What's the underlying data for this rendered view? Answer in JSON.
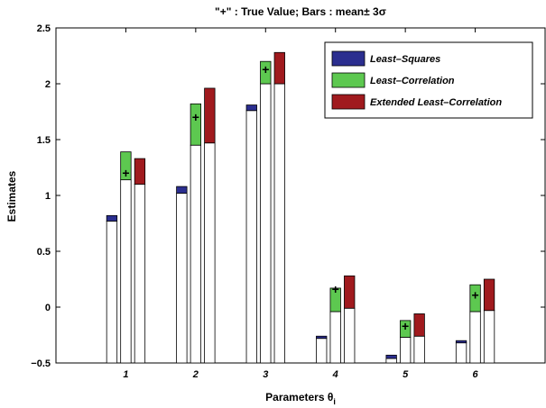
{
  "chart_data": {
    "type": "bar",
    "title": "\"+\" : True Value; Bars : mean± 3σ",
    "xlabel": "Parameters θ",
    "xlabel_sub": "i",
    "ylabel": "Estimates",
    "ylim": [
      -0.5,
      2.5
    ],
    "yticks": [
      -0.5,
      0,
      0.5,
      1,
      1.5,
      2,
      2.5
    ],
    "ytick_labels": [
      "−0.5",
      "0",
      "0.5",
      "1",
      "1.5",
      "2",
      "2.5"
    ],
    "categories": [
      "1",
      "2",
      "3",
      "4",
      "5",
      "6"
    ],
    "grid": false,
    "legend_position": "top-right",
    "true_marker": "+",
    "true_values": [
      1.2,
      1.7,
      2.13,
      0.16,
      -0.17,
      0.11
    ],
    "series": [
      {
        "name": "Least–Squares",
        "color": "#2b2e8f",
        "lower": [
          0.77,
          1.02,
          1.76,
          -0.28,
          -0.46,
          -0.32
        ],
        "upper": [
          0.82,
          1.08,
          1.81,
          -0.26,
          -0.43,
          -0.3
        ]
      },
      {
        "name": "Least–Correlation",
        "color": "#5dc850",
        "lower": [
          1.14,
          1.45,
          2.0,
          -0.04,
          -0.27,
          -0.04
        ],
        "upper": [
          1.39,
          1.82,
          2.2,
          0.17,
          -0.12,
          0.2
        ]
      },
      {
        "name": "Extended Least–Correlation",
        "color": "#a01a1e",
        "lower": [
          1.1,
          1.47,
          2.0,
          -0.01,
          -0.26,
          -0.03
        ],
        "upper": [
          1.33,
          1.96,
          2.28,
          0.28,
          -0.06,
          0.25
        ]
      }
    ]
  }
}
